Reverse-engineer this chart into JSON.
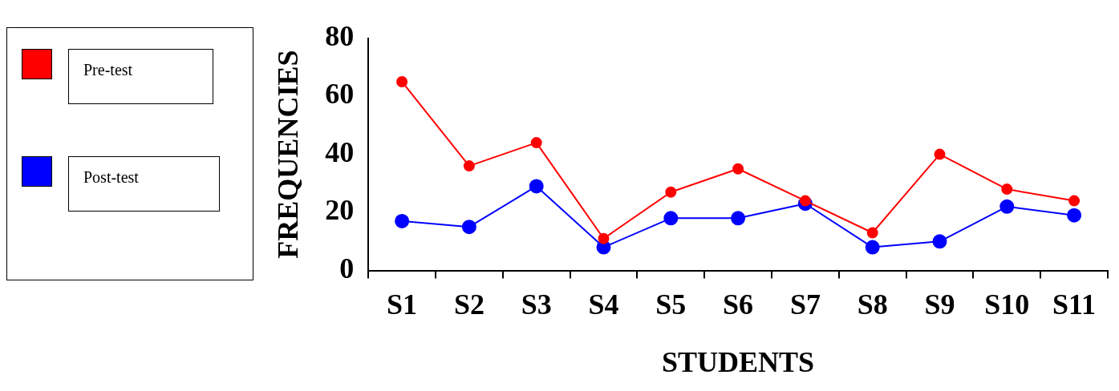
{
  "chart_data": {
    "type": "line",
    "xlabel": "STUDENTS",
    "ylabel": "FREQUENCIES",
    "categories": [
      "S1",
      "S2",
      "S3",
      "S4",
      "S5",
      "S6",
      "S7",
      "S8",
      "S9",
      "S10",
      "S11"
    ],
    "series": [
      {
        "name": "Pre-test",
        "color": "#ff0000",
        "values": [
          65,
          36,
          44,
          11,
          27,
          35,
          24,
          13,
          40,
          28,
          24
        ]
      },
      {
        "name": "Post-test",
        "color": "#0000ff",
        "values": [
          17,
          15,
          29,
          8,
          18,
          18,
          23,
          8,
          10,
          22,
          19
        ]
      }
    ],
    "ylim": [
      0,
      80
    ],
    "yticks": [
      0,
      20,
      40,
      60,
      80
    ],
    "grid": false,
    "legend": "left",
    "marker": "circle",
    "line_style": "solid"
  }
}
